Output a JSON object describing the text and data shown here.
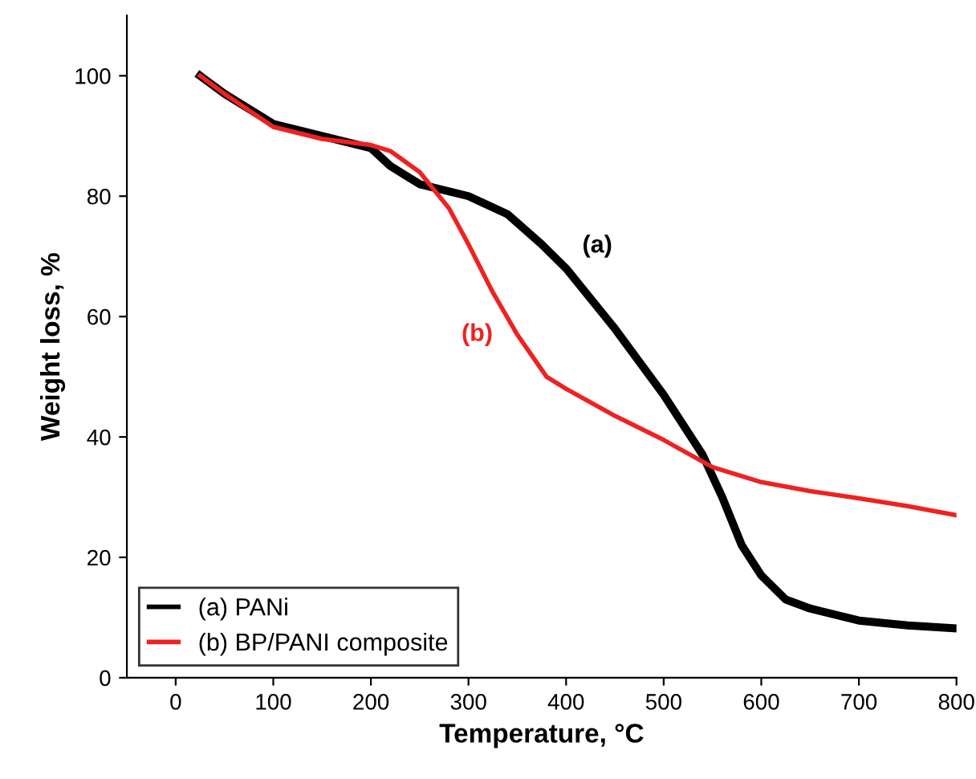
{
  "chart_data": {
    "type": "line",
    "xlabel": "Temperature, °C",
    "ylabel": "Weight loss, %",
    "xlim": [
      -50,
      800
    ],
    "ylim": [
      0,
      110
    ],
    "xticks": [
      0,
      100,
      200,
      300,
      400,
      500,
      600,
      700,
      800
    ],
    "yticks": [
      0,
      20,
      40,
      60,
      80,
      100
    ],
    "grid": false,
    "legend": "bottom left",
    "marker": "none",
    "line_style": "solid",
    "series": [
      {
        "name": "(a) PANi",
        "color": "#000000",
        "x": [
          25,
          50,
          100,
          150,
          200,
          220,
          250,
          300,
          340,
          375,
          400,
          450,
          500,
          540,
          560,
          580,
          600,
          625,
          650,
          700,
          750,
          800
        ],
        "values": [
          100,
          97,
          92,
          90,
          88,
          85,
          82,
          80,
          77,
          72,
          68,
          58,
          47,
          37,
          30,
          22,
          17,
          13,
          11.5,
          9.5,
          8.7,
          8.2
        ]
      },
      {
        "name": "(b) BP/PANI composite",
        "color": "#ee2222",
        "x": [
          25,
          50,
          100,
          150,
          200,
          220,
          250,
          280,
          300,
          325,
          350,
          380,
          400,
          450,
          500,
          550,
          600,
          650,
          700,
          750,
          800
        ],
        "values": [
          100,
          97,
          91.5,
          89.5,
          88.5,
          87.5,
          84,
          78,
          72,
          64,
          57,
          50,
          48,
          43.5,
          39.5,
          35,
          32.5,
          31,
          29.8,
          28.5,
          27
        ]
      }
    ],
    "annotations": [
      "(a)",
      "(b)"
    ]
  }
}
